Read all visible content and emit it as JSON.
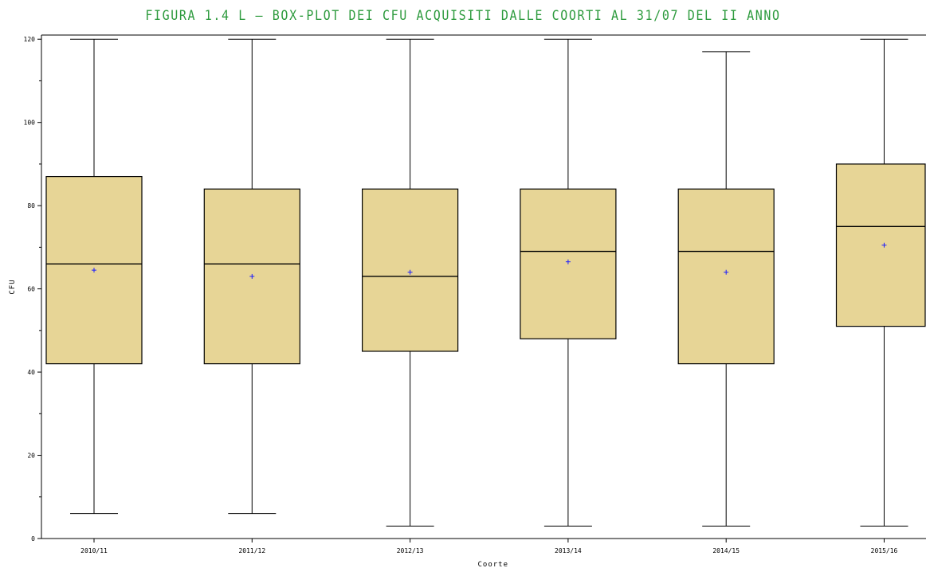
{
  "chart_data": {
    "type": "boxplot",
    "title": "FIGURA 1.4 L – BOX-PLOT DEI CFU ACQUISITI DALLE COORTI AL 31/07 DEL II ANNO",
    "xlabel": "Coorte",
    "ylabel": "CFU",
    "ylim": [
      0,
      121
    ],
    "yticks": [
      0,
      20,
      40,
      60,
      80,
      100,
      120
    ],
    "categories": [
      "2010/11",
      "2011/12",
      "2012/13",
      "2013/14",
      "2014/15",
      "2015/16"
    ],
    "boxes": [
      {
        "category": "2010/11",
        "min": 6,
        "q1": 42,
        "median": 66,
        "q3": 87,
        "max": 120,
        "mean": 64.5
      },
      {
        "category": "2011/12",
        "min": 6,
        "q1": 42,
        "median": 66,
        "q3": 84,
        "max": 120,
        "mean": 63
      },
      {
        "category": "2012/13",
        "min": 3,
        "q1": 45,
        "median": 63,
        "q3": 84,
        "max": 120,
        "mean": 64
      },
      {
        "category": "2013/14",
        "min": 3,
        "q1": 48,
        "median": 69,
        "q3": 84,
        "max": 120,
        "mean": 66.5
      },
      {
        "category": "2014/15",
        "min": 3,
        "q1": 42,
        "median": 69,
        "q3": 84,
        "max": 117,
        "mean": 64
      },
      {
        "category": "2015/16",
        "min": 3,
        "q1": 51,
        "median": 75,
        "q3": 90,
        "max": 120,
        "mean": 70.5
      }
    ],
    "colors": {
      "title": "#2e9b3e",
      "box_fill": "#e7d596",
      "mean_marker": "#1a1aff",
      "lines": "#000000"
    },
    "grid": false
  }
}
